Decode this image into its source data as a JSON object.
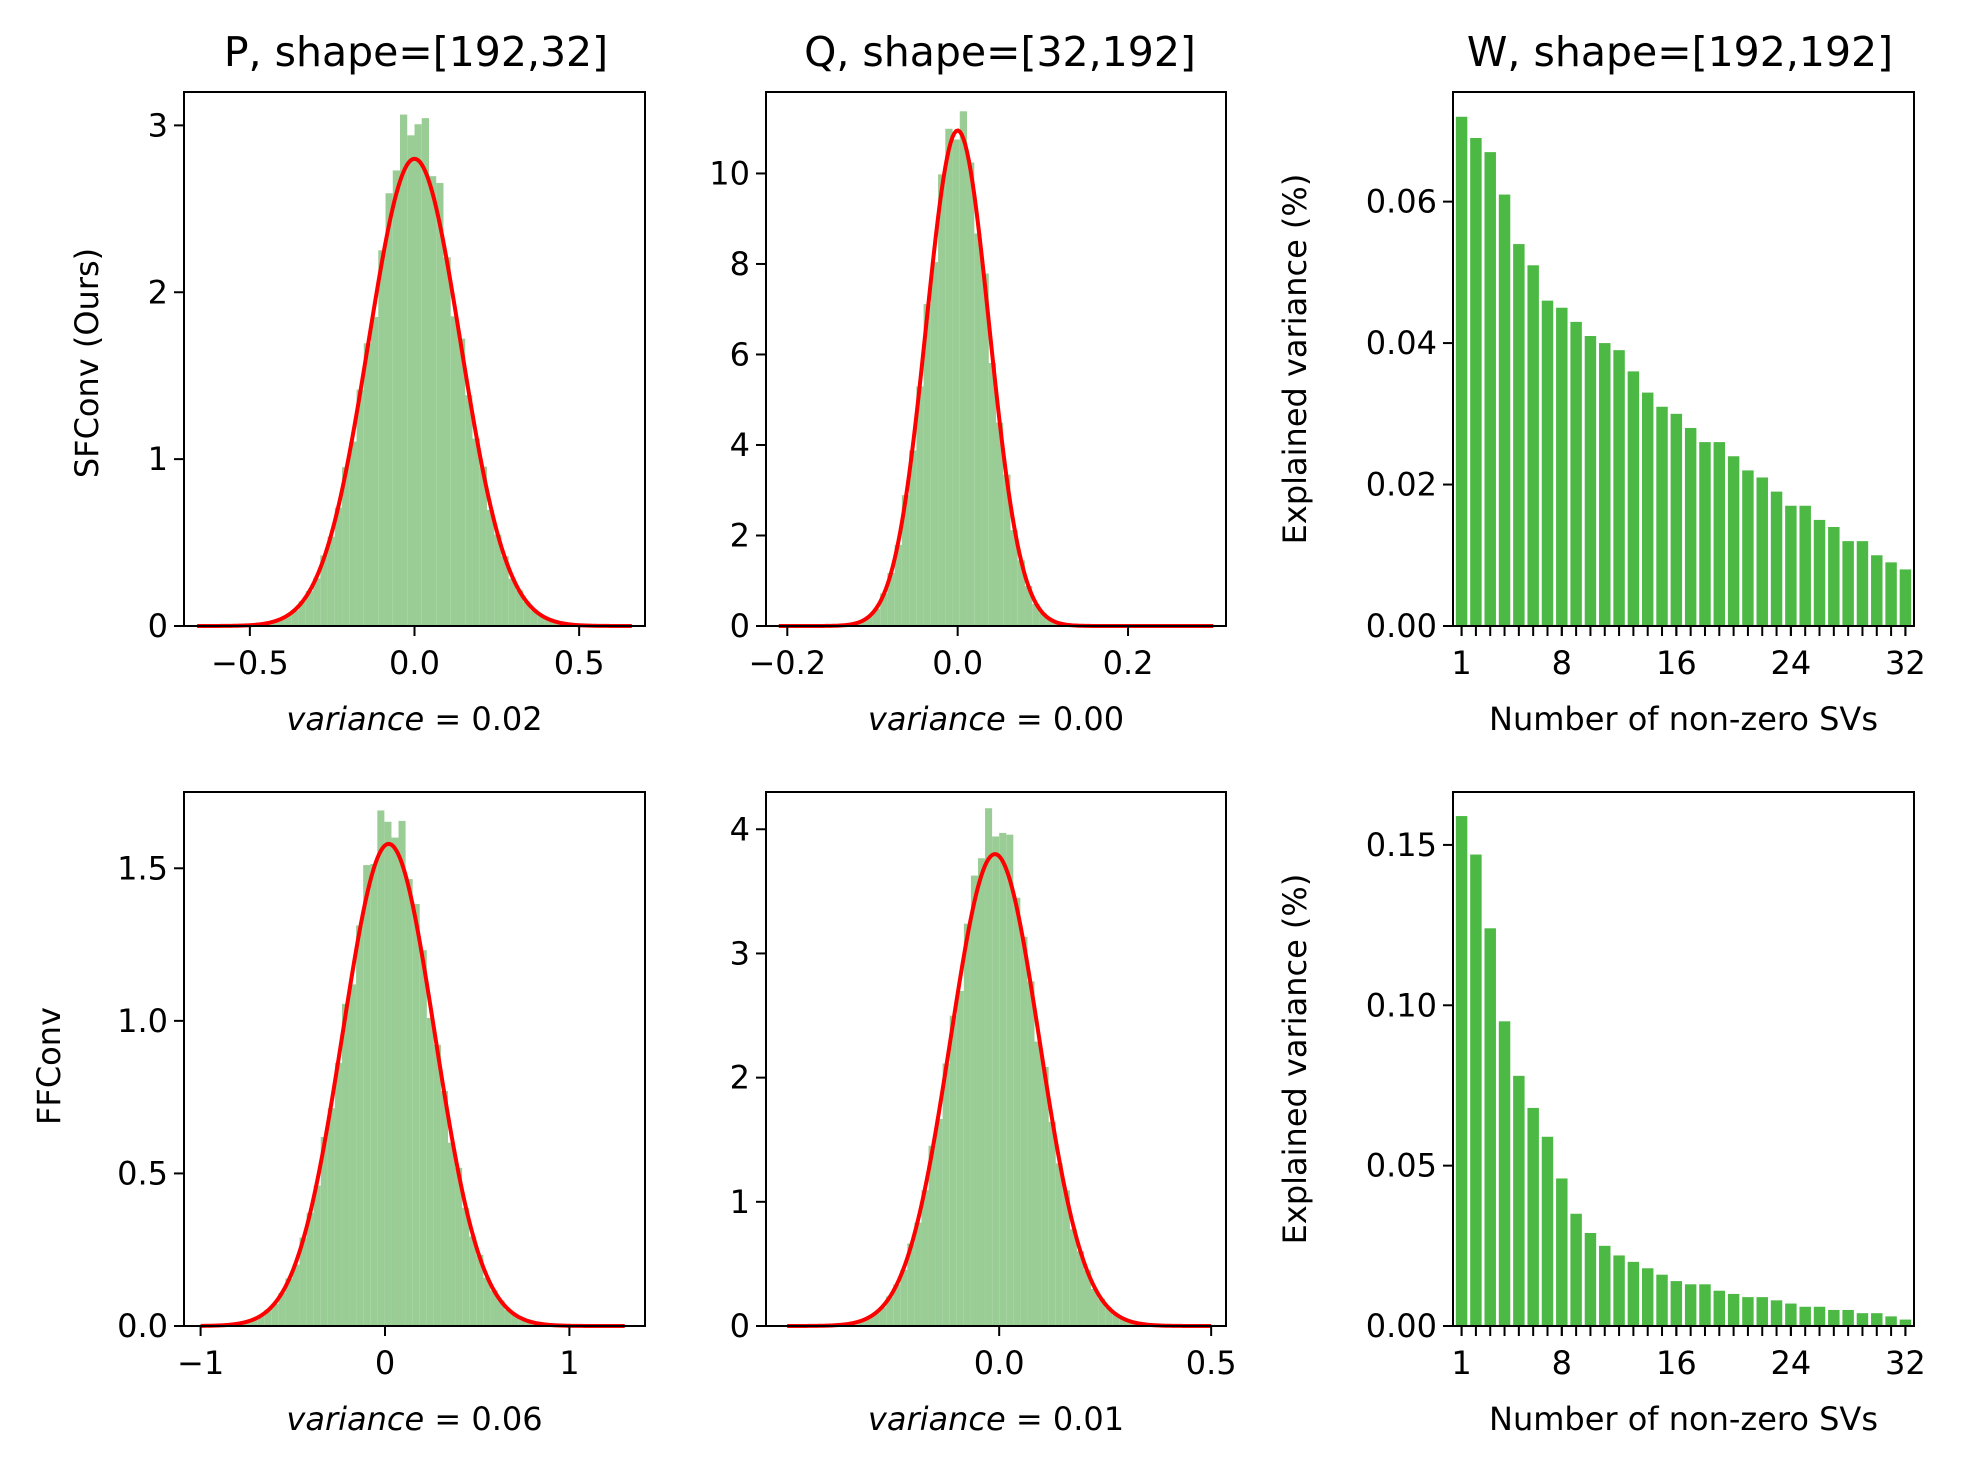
{
  "figure": {
    "col_titles": [
      "P, shape=[192,32]",
      "Q, shape=[32,192]",
      "W, shape=[192,192]"
    ],
    "row_labels": [
      "SFConv (Ours)",
      "FFConv"
    ]
  },
  "colors": {
    "hist": "#9acd95",
    "kde": "#ff0000",
    "bar": "#4cb944"
  },
  "chart_data": [
    {
      "id": "sfconv-P",
      "type": "histogram",
      "title": "P, shape=[192,32]",
      "ylabel": "SFConv (Ours)",
      "xlabel_italic": "variance",
      "xlabel_rest": " = 0.02",
      "xlim": [
        -0.7,
        0.7
      ],
      "ylim": [
        0,
        3.2
      ],
      "xticks": [
        {
          "v": -0.5,
          "label": "−0.5"
        },
        {
          "v": 0.0,
          "label": "0.0"
        },
        {
          "v": 0.5,
          "label": "0.5"
        }
      ],
      "yticks": [
        {
          "v": 0,
          "label": "0"
        },
        {
          "v": 1,
          "label": "1"
        },
        {
          "v": 2,
          "label": "2"
        },
        {
          "v": 3,
          "label": "3"
        }
      ],
      "distribution": {
        "mean": 0.0,
        "sd": 0.14,
        "peak": 2.8
      },
      "bins": {
        "start": -0.66,
        "end": 0.66,
        "count": 60
      },
      "hist_peak": 3.03
    },
    {
      "id": "sfconv-Q",
      "type": "histogram",
      "title": "Q, shape=[32,192]",
      "ylabel": "",
      "xlabel_italic": "variance",
      "xlabel_rest": " = 0.00",
      "xlim": [
        -0.225,
        0.315
      ],
      "ylim": [
        0,
        11.8
      ],
      "xticks": [
        {
          "v": -0.2,
          "label": "−0.2"
        },
        {
          "v": 0.0,
          "label": "0.0"
        },
        {
          "v": 0.2,
          "label": "0.2"
        }
      ],
      "yticks": [
        {
          "v": 0,
          "label": "0"
        },
        {
          "v": 2,
          "label": "2"
        },
        {
          "v": 4,
          "label": "4"
        },
        {
          "v": 6,
          "label": "6"
        },
        {
          "v": 8,
          "label": "8"
        },
        {
          "v": 10,
          "label": "10"
        }
      ],
      "distribution": {
        "mean": 0.0,
        "sd": 0.037,
        "peak": 10.95
      },
      "bins": {
        "start": -0.21,
        "end": 0.3,
        "count": 60
      },
      "hist_peak": 11.2
    },
    {
      "id": "sfconv-W",
      "type": "bar",
      "title": "W, shape=[192,192]",
      "ylabel": "Explained variance (%)",
      "xlabel": "Number of non-zero SVs",
      "xlim": [
        0.4,
        32.6
      ],
      "ylim": [
        0,
        0.0755
      ],
      "xticks": [
        {
          "v": 1,
          "label": "1"
        },
        {
          "v": 8,
          "label": "8"
        },
        {
          "v": 16,
          "label": "16"
        },
        {
          "v": 24,
          "label": "24"
        },
        {
          "v": 32,
          "label": "32"
        }
      ],
      "yticks": [
        {
          "v": 0.0,
          "label": "0.00"
        },
        {
          "v": 0.02,
          "label": "0.02"
        },
        {
          "v": 0.04,
          "label": "0.04"
        },
        {
          "v": 0.06,
          "label": "0.06"
        }
      ],
      "categories": [
        1,
        2,
        3,
        4,
        5,
        6,
        7,
        8,
        9,
        10,
        11,
        12,
        13,
        14,
        15,
        16,
        17,
        18,
        19,
        20,
        21,
        22,
        23,
        24,
        25,
        26,
        27,
        28,
        29,
        30,
        31,
        32
      ],
      "values": [
        0.072,
        0.069,
        0.067,
        0.061,
        0.054,
        0.051,
        0.046,
        0.045,
        0.043,
        0.041,
        0.04,
        0.039,
        0.036,
        0.033,
        0.031,
        0.03,
        0.028,
        0.026,
        0.026,
        0.024,
        0.022,
        0.021,
        0.019,
        0.017,
        0.017,
        0.015,
        0.014,
        0.012,
        0.012,
        0.01,
        0.009,
        0.008
      ]
    },
    {
      "id": "ffconv-P",
      "type": "histogram",
      "title": "",
      "ylabel": "FFConv",
      "xlabel_italic": "variance",
      "xlabel_rest": " = 0.06",
      "xlim": [
        -1.09,
        1.41
      ],
      "ylim": [
        0,
        1.75
      ],
      "xticks": [
        {
          "v": -1,
          "label": "−1"
        },
        {
          "v": 0,
          "label": "0"
        },
        {
          "v": 1,
          "label": "1"
        }
      ],
      "yticks": [
        {
          "v": 0,
          "label": "0.0"
        },
        {
          "v": 0.5,
          "label": "0.5"
        },
        {
          "v": 1.0,
          "label": "1.0"
        },
        {
          "v": 1.5,
          "label": "1.5"
        }
      ],
      "distribution": {
        "mean": 0.02,
        "sd": 0.25,
        "peak": 1.58
      },
      "bins": {
        "start": -1.0,
        "end": 1.3,
        "count": 60
      },
      "hist_peak": 1.66
    },
    {
      "id": "ffconv-Q",
      "type": "histogram",
      "title": "",
      "ylabel": "",
      "xlabel_italic": "variance",
      "xlabel_rest": " = 0.01",
      "xlim": [
        -0.55,
        0.535
      ],
      "ylim": [
        0,
        4.3
      ],
      "xticks": [
        {
          "v": 0.0,
          "label": "0.0"
        },
        {
          "v": 0.5,
          "label": "0.5"
        }
      ],
      "yticks": [
        {
          "v": 0,
          "label": "0"
        },
        {
          "v": 1,
          "label": "1"
        },
        {
          "v": 2,
          "label": "2"
        },
        {
          "v": 3,
          "label": "3"
        },
        {
          "v": 4,
          "label": "4"
        }
      ],
      "distribution": {
        "mean": -0.01,
        "sd": 0.105,
        "peak": 3.8
      },
      "bins": {
        "start": -0.5,
        "end": 0.5,
        "count": 60
      },
      "hist_peak": 4.05
    },
    {
      "id": "ffconv-W",
      "type": "bar",
      "title": "",
      "ylabel": "Explained variance (%)",
      "xlabel": "Number of non-zero SVs",
      "xlim": [
        0.4,
        32.6
      ],
      "ylim": [
        0,
        0.1665
      ],
      "xticks": [
        {
          "v": 1,
          "label": "1"
        },
        {
          "v": 8,
          "label": "8"
        },
        {
          "v": 16,
          "label": "16"
        },
        {
          "v": 24,
          "label": "24"
        },
        {
          "v": 32,
          "label": "32"
        }
      ],
      "yticks": [
        {
          "v": 0.0,
          "label": "0.00"
        },
        {
          "v": 0.05,
          "label": "0.05"
        },
        {
          "v": 0.1,
          "label": "0.10"
        },
        {
          "v": 0.15,
          "label": "0.15"
        }
      ],
      "categories": [
        1,
        2,
        3,
        4,
        5,
        6,
        7,
        8,
        9,
        10,
        11,
        12,
        13,
        14,
        15,
        16,
        17,
        18,
        19,
        20,
        21,
        22,
        23,
        24,
        25,
        26,
        27,
        28,
        29,
        30,
        31,
        32
      ],
      "values": [
        0.159,
        0.147,
        0.124,
        0.095,
        0.078,
        0.068,
        0.059,
        0.046,
        0.035,
        0.029,
        0.025,
        0.022,
        0.02,
        0.018,
        0.016,
        0.014,
        0.013,
        0.013,
        0.011,
        0.01,
        0.009,
        0.009,
        0.008,
        0.007,
        0.006,
        0.006,
        0.005,
        0.005,
        0.004,
        0.004,
        0.003,
        0.002
      ]
    }
  ]
}
